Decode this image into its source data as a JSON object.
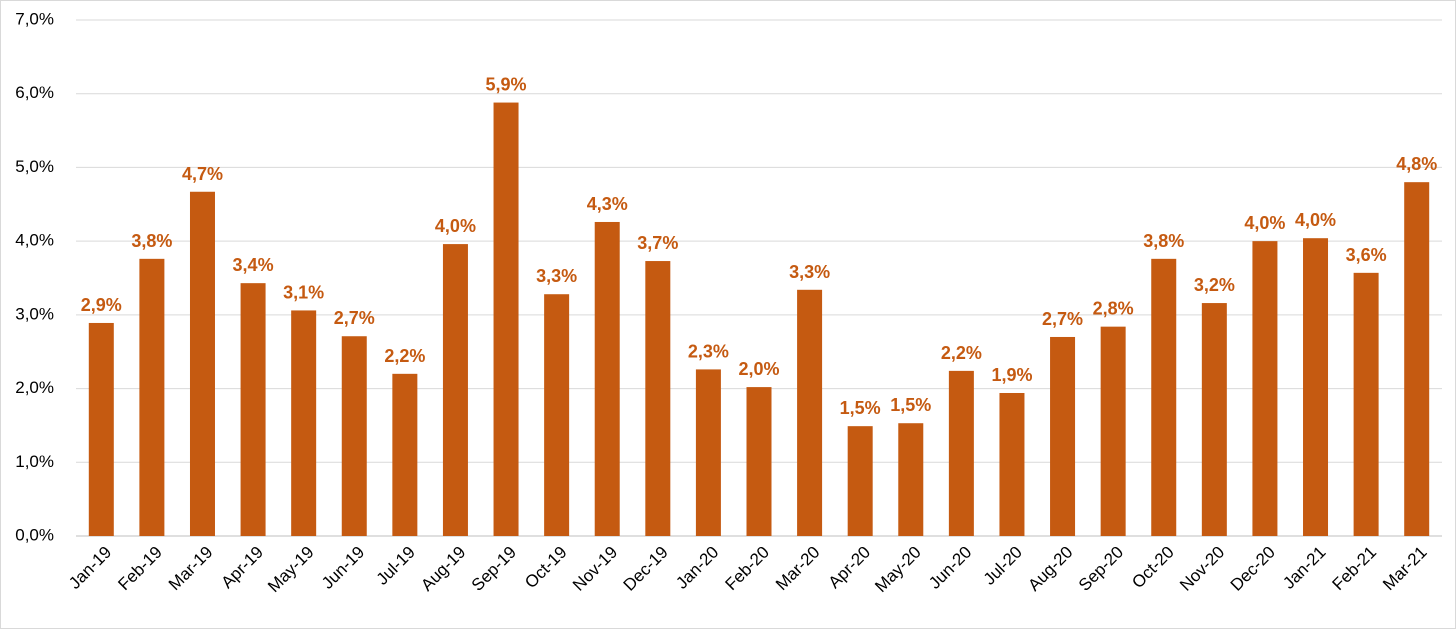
{
  "chart_data": {
    "type": "bar",
    "categories": [
      "Jan-19",
      "Feb-19",
      "Mar-19",
      "Apr-19",
      "May-19",
      "Jun-19",
      "Jul-19",
      "Aug-19",
      "Sep-19",
      "Oct-19",
      "Nov-19",
      "Dec-19",
      "Jan-20",
      "Feb-20",
      "Mar-20",
      "Apr-20",
      "May-20",
      "Jun-20",
      "Jul-20",
      "Aug-20",
      "Sep-20",
      "Oct-20",
      "Nov-20",
      "Dec-20",
      "Jan-21",
      "Feb-21",
      "Mar-21"
    ],
    "values": [
      2.89,
      3.76,
      4.67,
      3.43,
      3.06,
      2.71,
      2.2,
      3.96,
      5.88,
      3.28,
      4.26,
      3.73,
      2.26,
      2.02,
      3.34,
      1.49,
      1.53,
      2.24,
      1.94,
      2.7,
      2.84,
      3.76,
      3.16,
      4.0,
      4.04,
      3.57,
      4.8
    ],
    "value_labels": [
      "2,9%",
      "3,8%",
      "4,7%",
      "3,4%",
      "3,1%",
      "2,7%",
      "2,2%",
      "4,0%",
      "5,9%",
      "3,3%",
      "4,3%",
      "3,7%",
      "2,3%",
      "2,0%",
      "3,3%",
      "1,5%",
      "1,5%",
      "2,2%",
      "1,9%",
      "2,7%",
      "2,8%",
      "3,8%",
      "3,2%",
      "4,0%",
      "4,0%",
      "3,6%",
      "4,8%"
    ],
    "color": "#c55a11",
    "ylim": [
      0,
      7
    ],
    "yticks": [
      {
        "value": 0,
        "label": "0,0%"
      },
      {
        "value": 1,
        "label": "1,0%"
      },
      {
        "value": 2,
        "label": "2,0%"
      },
      {
        "value": 3,
        "label": "3,0%"
      },
      {
        "value": 4,
        "label": "4,0%"
      },
      {
        "value": 5,
        "label": "5,0%"
      },
      {
        "value": 6,
        "label": "6,0%"
      },
      {
        "value": 7,
        "label": "7,0%"
      }
    ],
    "grid": true
  }
}
